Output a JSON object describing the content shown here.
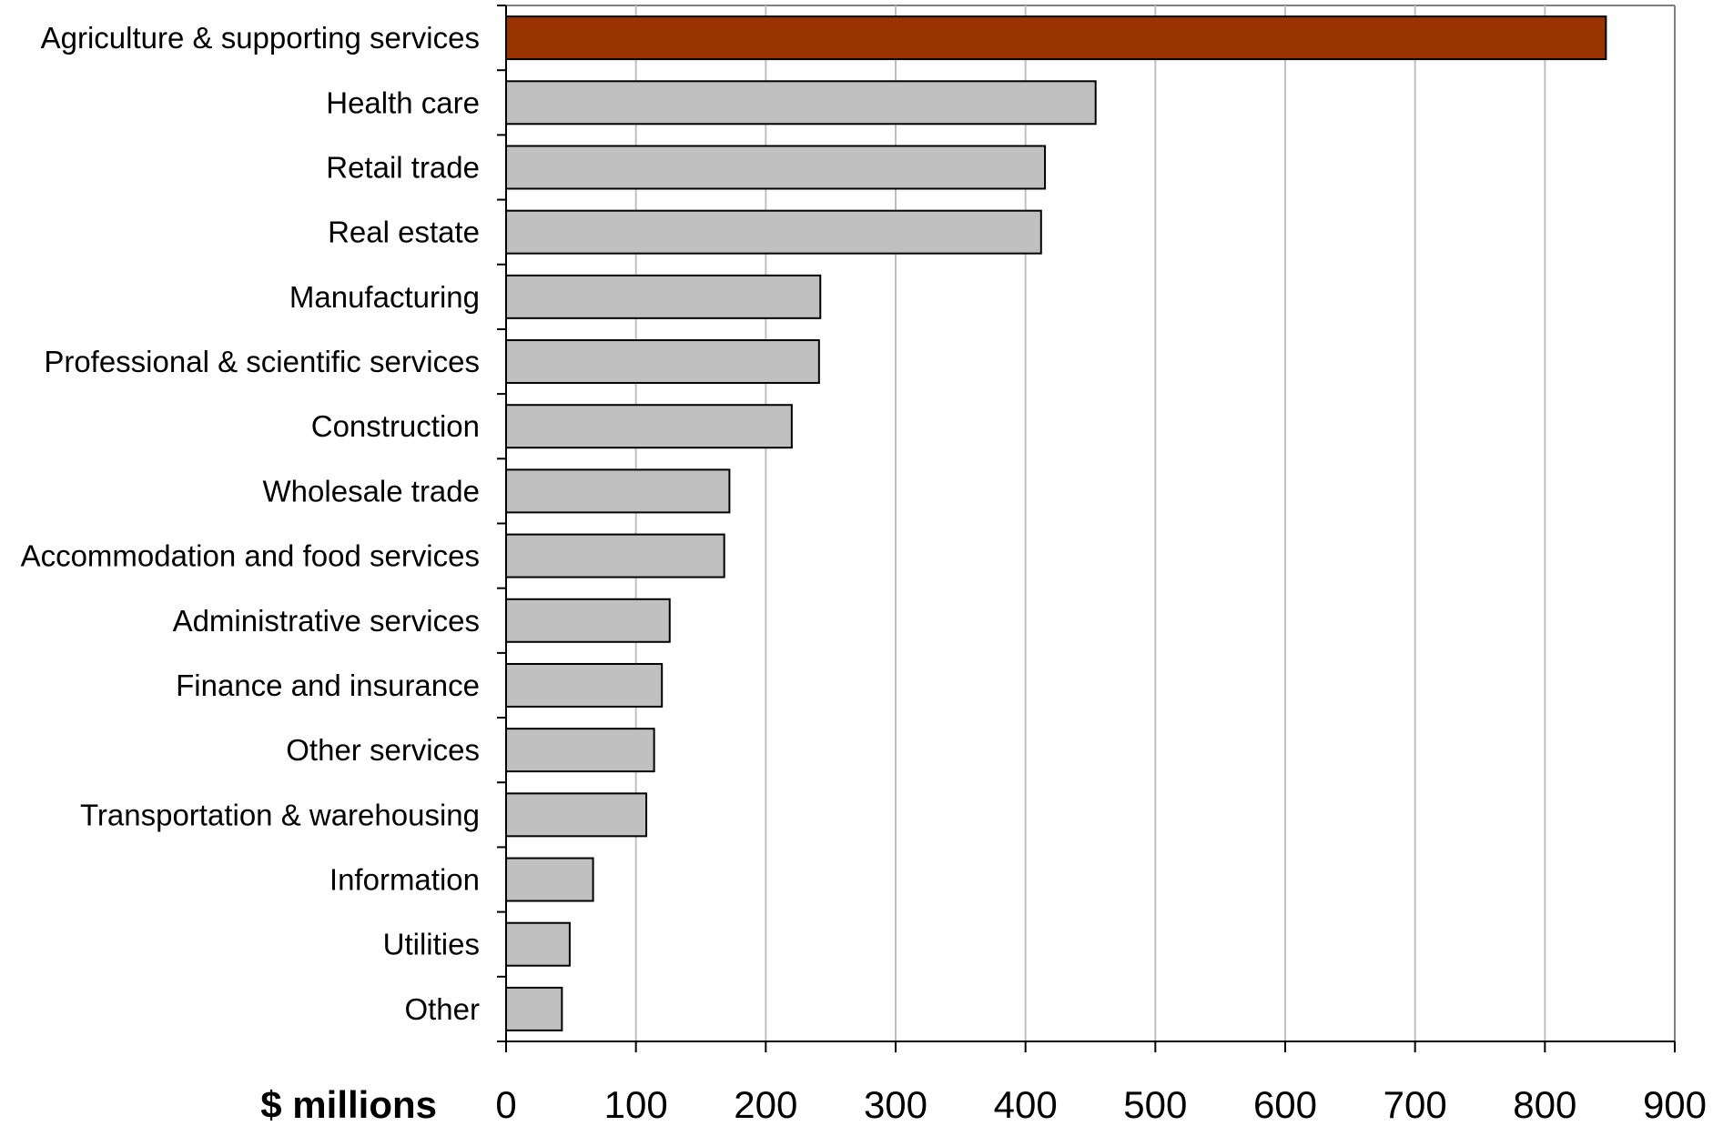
{
  "chart_data": {
    "type": "bar",
    "orientation": "horizontal",
    "categories": [
      "Agriculture & supporting services",
      "Health care",
      "Retail trade",
      "Real estate",
      "Manufacturing",
      "Professional & scientific services",
      "Construction",
      "Wholesale trade",
      "Accommodation and food services",
      "Administrative services",
      "Finance and insurance",
      "Other services",
      "Transportation & warehousing",
      "Information",
      "Utilities",
      "Other"
    ],
    "values": [
      847,
      454,
      415,
      412,
      242,
      241,
      220,
      172,
      168,
      126,
      120,
      114,
      108,
      67,
      49,
      43
    ],
    "xlabel": "$ millions",
    "xlim": [
      0,
      900
    ],
    "xticks": [
      "0",
      "100",
      "200",
      "300",
      "400",
      "500",
      "600",
      "700",
      "800",
      "900"
    ],
    "grid": "vertical",
    "highlight_index": 0,
    "colors": {
      "highlight": "#993300",
      "default": "#c0c0c0",
      "bar_outline": "#000000",
      "grid": "#c0c0c0",
      "axis": "#000000",
      "plot_border": "#808080"
    }
  }
}
